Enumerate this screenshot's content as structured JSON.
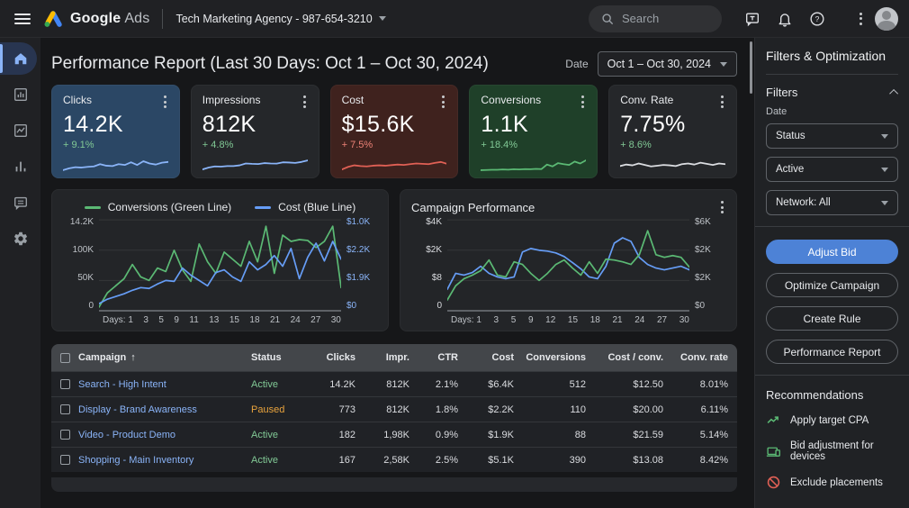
{
  "topbar": {
    "brand_primary": "Google",
    "brand_secondary": "Ads",
    "account": "Tech Marketing Agency - 987-654-3210",
    "search_placeholder": "Search"
  },
  "header": {
    "title": "Performance Report (Last 30 Days: Oct 1 – Oct 30, 2024)",
    "date_label": "Date",
    "date_value": "Oct 1 – Oct 30, 2024"
  },
  "kpis": [
    {
      "label": "Clicks",
      "value": "14.2K",
      "delta": "+ 9.1%",
      "delta_color": "#81c995",
      "bg": "#2b4765",
      "spark_color": "#8ab4f8",
      "spark": [
        6,
        16,
        22,
        20,
        24,
        26,
        38,
        30,
        28,
        38,
        34,
        48,
        34,
        54,
        42,
        36,
        46,
        50
      ]
    },
    {
      "label": "Impressions",
      "value": "812K",
      "delta": "+ 4.8%",
      "delta_color": "#81c995",
      "bg": "#25272a",
      "spark_color": "#8ab4f8",
      "spark": [
        10,
        20,
        26,
        25,
        28,
        28,
        32,
        42,
        40,
        39,
        44,
        42,
        41,
        48,
        47,
        45,
        50,
        58
      ]
    },
    {
      "label": "Cost",
      "value": "$15.6K",
      "delta": "+ 7.5%",
      "delta_color": "#ee8277",
      "bg": "#3f221e",
      "spark_color": "#e06055",
      "spark": [
        10,
        24,
        32,
        28,
        26,
        30,
        32,
        30,
        33,
        36,
        34,
        38,
        42,
        40,
        38,
        45,
        50,
        40
      ]
    },
    {
      "label": "Conversions",
      "value": "1.1K",
      "delta": "+ 18.4%",
      "delta_color": "#81c995",
      "bg": "#1f4029",
      "spark_color": "#5bb974",
      "spark": [
        6,
        7,
        8,
        8,
        10,
        9,
        11,
        10,
        12,
        11,
        13,
        12,
        36,
        26,
        44,
        38,
        34,
        52,
        42,
        58
      ]
    },
    {
      "label": "Conv. Rate",
      "value": "7.75%",
      "delta": "+ 8.6%",
      "delta_color": "#81c995",
      "bg": "#25272a",
      "spark_color": "#dadce0",
      "spark": [
        28,
        36,
        32,
        42,
        34,
        26,
        30,
        34,
        32,
        28,
        38,
        42,
        36,
        46,
        40,
        34,
        42,
        38
      ]
    }
  ],
  "chart_data": [
    {
      "type": "line",
      "title": "",
      "legend": [
        {
          "label": "Conversions (Green Line)",
          "color": "#5bb974"
        },
        {
          "label": "Cost (Blue Line)",
          "color": "#669df6"
        }
      ],
      "y_ticks_left": [
        "14.2K",
        "100K",
        "50K",
        "0"
      ],
      "y_ticks_right": [
        "$1.0K",
        "$2.2K",
        "$1.9K",
        "$0"
      ],
      "y_left_color": "#bdc1c6",
      "y_right_color": "#8ab4f8",
      "x_prefix": "Days:",
      "x_ticks": [
        "1",
        "3",
        "5",
        "9",
        "11",
        "13",
        "15",
        "18",
        "21",
        "24",
        "27",
        "30"
      ],
      "grid": true,
      "legend_position": "top-center",
      "series": [
        {
          "name": "Conversions",
          "color": "#5bb974",
          "values": [
            4,
            20,
            28,
            36,
            52,
            38,
            34,
            48,
            44,
            68,
            46,
            33,
            75,
            55,
            42,
            66,
            58,
            50,
            78,
            55,
            95,
            42,
            85,
            78,
            80,
            79,
            71,
            78,
            95,
            26
          ]
        },
        {
          "name": "Cost",
          "color": "#669df6",
          "values": [
            8,
            13,
            16,
            19,
            23,
            26,
            25,
            30,
            34,
            33,
            48,
            40,
            34,
            28,
            43,
            46,
            38,
            33,
            55,
            46,
            52,
            62,
            50,
            70,
            36,
            60,
            76,
            56,
            78,
            58
          ]
        }
      ]
    },
    {
      "type": "line",
      "title": "Campaign Performance",
      "y_ticks_left": [
        "$4K",
        "$2K",
        "$8",
        "0"
      ],
      "y_ticks_right": [
        "$6K",
        "$2K",
        "$2K",
        "$0"
      ],
      "y_left_color": "#dadce0",
      "y_right_color": "#bdc1c6",
      "x_prefix": "Days:",
      "x_ticks": [
        "1",
        "3",
        "5",
        "9",
        "12",
        "15",
        "18",
        "21",
        "24",
        "27",
        "30"
      ],
      "grid": true,
      "series": [
        {
          "name": "Blue line",
          "color": "#669df6",
          "values": [
            24,
            42,
            40,
            43,
            50,
            42,
            38,
            36,
            38,
            66,
            70,
            68,
            67,
            65,
            61,
            54,
            47,
            38,
            36,
            50,
            76,
            82,
            78,
            60,
            52,
            48,
            46,
            48,
            50,
            46
          ]
        },
        {
          "name": "Green line",
          "color": "#5bb974",
          "values": [
            12,
            28,
            36,
            40,
            45,
            57,
            40,
            38,
            55,
            52,
            42,
            34,
            42,
            52,
            57,
            48,
            40,
            55,
            42,
            58,
            57,
            55,
            52,
            63,
            90,
            63,
            60,
            62,
            60,
            49
          ]
        }
      ]
    }
  ],
  "table": {
    "columns": [
      "Campaign",
      "Status",
      "Clicks",
      "Impr.",
      "CTR",
      "Cost",
      "Conversions",
      "Cost / conv.",
      "Conv. rate"
    ],
    "sort_icon": "↑",
    "rows": [
      {
        "campaign": "Search - High Intent",
        "status": "Active",
        "status_color": "#81c995",
        "clicks": "14.2K",
        "impr": "812K",
        "ctr": "2.1%",
        "cost": "$6.4K",
        "conversions": "512",
        "cost_conv": "$12.50",
        "conv_rate": "8.01%"
      },
      {
        "campaign": "Display - Brand Awareness",
        "status": "Paused",
        "status_color": "#e8a33d",
        "clicks": "773",
        "impr": "812K",
        "ctr": "1.8%",
        "cost": "$2.2K",
        "conversions": "110",
        "cost_conv": "$20.00",
        "conv_rate": "6.11%"
      },
      {
        "campaign": "Video - Product Demo",
        "status": "Active",
        "status_color": "#81c995",
        "clicks": "182",
        "impr": "1,98K",
        "ctr": "0.9%",
        "cost": "$1.9K",
        "conversions": "88",
        "cost_conv": "$21.59",
        "conv_rate": "5.14%"
      },
      {
        "campaign": "Shopping - Main Inventory",
        "status": "Active",
        "status_color": "#81c995",
        "clicks": "167",
        "impr": "2,58K",
        "ctr": "2.5%",
        "cost": "$5.1K",
        "conversions": "390",
        "cost_conv": "$13.08",
        "conv_rate": "8.42%"
      }
    ]
  },
  "sidebar_right": {
    "title": "Filters & Optimization",
    "filters_title": "Filters",
    "date_label": "Date",
    "selects": [
      "Status",
      "Active",
      "Network: All"
    ],
    "buttons": [
      {
        "label": "Adjust Bid",
        "primary": true,
        "color": "#4d82d6"
      },
      {
        "label": "Optimize Campaign"
      },
      {
        "label": "Create Rule"
      },
      {
        "label": "Performance Report"
      }
    ],
    "recommendations_title": "Recommendations",
    "recommendations": [
      {
        "label": "Apply target CPA",
        "icon": "trending-up-icon",
        "color": "#5bb974"
      },
      {
        "label": "Bid adjustment for devices",
        "icon": "devices-icon",
        "color": "#5bb974"
      },
      {
        "label": "Exclude placements",
        "icon": "block-icon",
        "color": "#e06055"
      }
    ]
  }
}
